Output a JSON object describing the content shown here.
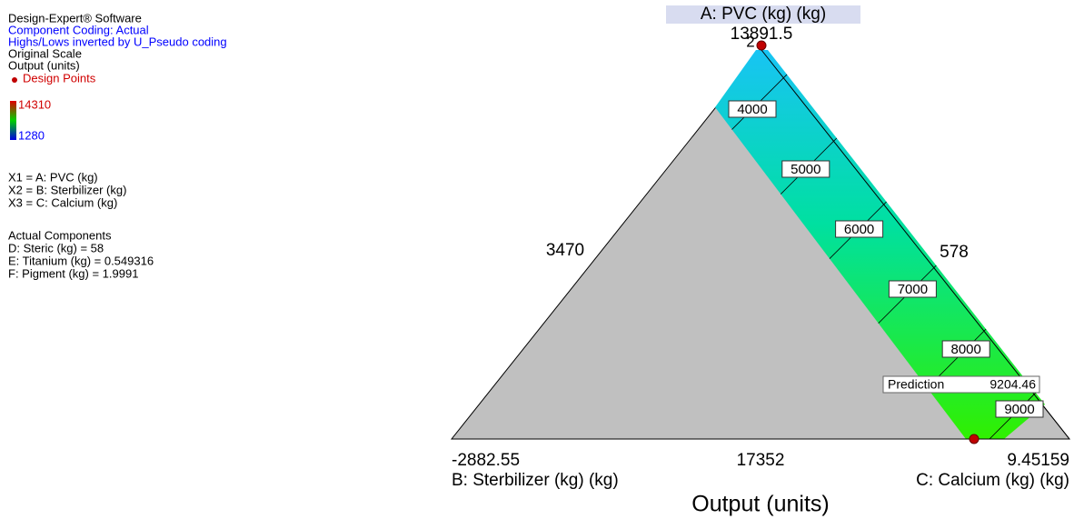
{
  "sidebar": {
    "lines": [
      {
        "text": "Design-Expert® Software",
        "color": "#000000"
      },
      {
        "text": "Component Coding: Actual",
        "color": "#0000ff"
      },
      {
        "text": "Highs/Lows inverted by U_Pseudo coding",
        "color": "#0000ff"
      },
      {
        "text": "Original Scale",
        "color": "#000000"
      },
      {
        "text": "Output (units)",
        "color": "#000000"
      }
    ],
    "design_points": "Design Points",
    "colorbar": {
      "high": 14310,
      "low": 1280
    },
    "components": [
      "X1 = A: PVC (kg)",
      "X2 = B: Sterbilizer (kg)",
      "X3 = C: Calcium (kg)"
    ],
    "actual_title": "Actual Components",
    "actual": [
      "D: Steric (kg) = 58",
      "E: Titanium (kg) = 0.549316",
      "F: Pigment (kg) = 1.9991"
    ]
  },
  "chart_data": {
    "type": "ternary-contour",
    "title": "Output (units)",
    "a_label": "A: PVC (kg) (kg)",
    "a_value": 13891.5,
    "b_label": "B: Sterbilizer (kg) (kg)",
    "b_value": -2882.55,
    "c_label": "C: Calcium (kg) (kg)",
    "c_value": 9.45159,
    "left_edge": 3470,
    "right_edge": 578,
    "bottom_edge": 17352,
    "point_label": "2",
    "contours": [
      4000,
      5000,
      6000,
      7000,
      8000,
      9000
    ],
    "prediction_label": "Prediction",
    "prediction": 9204.46
  }
}
